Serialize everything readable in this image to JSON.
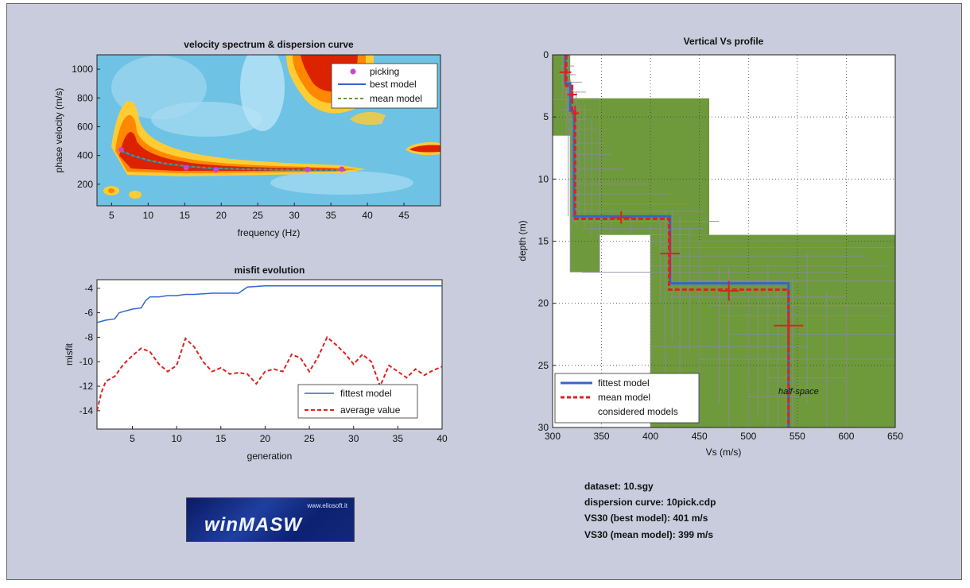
{
  "chart_data": [
    {
      "type": "heatmap",
      "title": "velocity spectrum & dispersion curve",
      "xlabel": "frequency (Hz)",
      "ylabel": "phase velocity (m/s)",
      "xlim": [
        3,
        50
      ],
      "ylim": [
        50,
        1100
      ],
      "xticks": [
        5,
        10,
        15,
        20,
        25,
        30,
        35,
        40,
        45
      ],
      "yticks": [
        200,
        400,
        600,
        800,
        1000
      ],
      "legend_position": "top-right",
      "legend": [
        "picking",
        "best model",
        "mean model"
      ],
      "series": [
        {
          "name": "picking",
          "kind": "points",
          "color": "#cc44cc",
          "x": [
            6.3,
            15.2,
            19.3,
            31.8,
            36.5
          ],
          "y": [
            440,
            315,
            300,
            302,
            305
          ]
        },
        {
          "name": "best model",
          "kind": "line",
          "color": "#3366cc",
          "x": [
            6.3,
            8,
            10,
            12,
            15,
            18,
            22,
            26,
            30,
            34,
            37
          ],
          "y": [
            430,
            395,
            365,
            345,
            325,
            312,
            305,
            302,
            300,
            298,
            297
          ]
        },
        {
          "name": "mean model",
          "kind": "dashed",
          "color": "#6a9a3a",
          "x": [
            6.3,
            8,
            10,
            12,
            15,
            18,
            22,
            26,
            30,
            34,
            37
          ],
          "y": [
            432,
            398,
            368,
            347,
            327,
            314,
            306,
            303,
            301,
            299,
            298
          ]
        }
      ]
    },
    {
      "type": "line",
      "title": "misfit evolution",
      "xlabel": "generation",
      "ylabel": "misfit",
      "xlim": [
        1,
        40
      ],
      "ylim": [
        -15.5,
        -3.3
      ],
      "xticks": [
        5,
        10,
        15,
        20,
        25,
        30,
        35,
        40
      ],
      "yticks": [
        -4,
        -6,
        -8,
        -10,
        -12,
        -14
      ],
      "legend_position": "bottom-right",
      "series": [
        {
          "name": "fittest model",
          "color": "#3366cc",
          "style": "solid",
          "x": [
            1,
            2,
            3,
            3.5,
            4,
            5,
            6,
            6.5,
            7,
            8,
            9,
            10,
            11,
            12,
            14,
            17,
            18,
            20,
            25,
            30,
            35,
            40
          ],
          "y": [
            -6.8,
            -6.6,
            -6.5,
            -6.0,
            -5.9,
            -5.7,
            -5.6,
            -5.0,
            -4.7,
            -4.7,
            -4.6,
            -4.6,
            -4.5,
            -4.5,
            -4.4,
            -4.4,
            -3.9,
            -3.8,
            -3.8,
            -3.8,
            -3.8,
            -3.8
          ]
        },
        {
          "name": "average value",
          "color": "#dd2222",
          "style": "dashed",
          "x": [
            1,
            1.5,
            2,
            3,
            4,
            5,
            6,
            7,
            8,
            9,
            10,
            11,
            12,
            13,
            14,
            15,
            16,
            17,
            18,
            19,
            20,
            21,
            22,
            23,
            24,
            25,
            26,
            27,
            28,
            29,
            30,
            31,
            32,
            33,
            34,
            35,
            36,
            37,
            38,
            39,
            40
          ],
          "y": [
            -14.0,
            -12.5,
            -11.6,
            -11.2,
            -10.2,
            -9.5,
            -8.9,
            -9.2,
            -10.2,
            -10.8,
            -10.3,
            -8.1,
            -8.8,
            -10.0,
            -10.8,
            -10.5,
            -11.0,
            -10.9,
            -11.0,
            -11.8,
            -10.8,
            -10.6,
            -10.8,
            -9.4,
            -9.7,
            -10.8,
            -9.6,
            -8.0,
            -8.6,
            -9.3,
            -10.2,
            -9.4,
            -10.0,
            -12.0,
            -10.3,
            -10.8,
            -11.3,
            -10.6,
            -11.1,
            -10.7,
            -10.4
          ]
        }
      ]
    },
    {
      "type": "line",
      "title": "Vertical Vs profile",
      "xlabel": "Vs (m/s)",
      "ylabel": "depth (m)",
      "xlim": [
        300,
        650
      ],
      "ylim": [
        0,
        30
      ],
      "xticks": [
        300,
        350,
        400,
        450,
        500,
        550,
        600,
        650
      ],
      "yticks": [
        0,
        5,
        10,
        15,
        20,
        25,
        30
      ],
      "grid": true,
      "legend_position": "bottom-left",
      "annotation": "half-space",
      "considered_models_color": "#6e9a3c",
      "considered_models_region": [
        {
          "vs": [
            300,
            318
          ],
          "depth": [
            0,
            6.5
          ]
        },
        {
          "vs": [
            300,
            348
          ],
          "depth": [
            3.5,
            6.5
          ]
        },
        {
          "vs": [
            318,
            348
          ],
          "depth": [
            3.5,
            17.5
          ]
        },
        {
          "vs": [
            348,
            460
          ],
          "depth": [
            3.5,
            14.5
          ]
        },
        {
          "vs": [
            400,
            650
          ],
          "depth": [
            14.5,
            30
          ]
        },
        {
          "vs": [
            440,
            650
          ],
          "depth": [
            14.5,
            30
          ]
        }
      ],
      "series": [
        {
          "name": "fittest model",
          "color": "#3366cc",
          "style": "solid",
          "vs": [
            313,
            313,
            318,
            318,
            322,
            322,
            420,
            420,
            541,
            541
          ],
          "depth": [
            0,
            2.3,
            2.3,
            4.5,
            4.5,
            13.0,
            13.0,
            18.4,
            18.4,
            30
          ]
        },
        {
          "name": "mean model",
          "color": "#dd2222",
          "style": "dashed",
          "vs": [
            314,
            314,
            320,
            320,
            323,
            323,
            419,
            419,
            541,
            541
          ],
          "depth": [
            0,
            2.5,
            2.5,
            4.6,
            4.6,
            13.2,
            13.2,
            18.9,
            18.9,
            30
          ]
        },
        {
          "name": "considered models",
          "color": "#6e9a3c",
          "style": "patch",
          "vs": [],
          "depth": []
        }
      ],
      "error_crosses": [
        {
          "vs": 313,
          "depth": 1.4,
          "dvs": 6,
          "ddepth": 0.8
        },
        {
          "vs": 320,
          "depth": 3.2,
          "dvs": 5,
          "ddepth": 0.6
        },
        {
          "vs": 323,
          "depth": 4.7,
          "dvs": 4,
          "ddepth": 0.6
        },
        {
          "vs": 370,
          "depth": 13.1,
          "dvs": 10,
          "ddepth": 0.5
        },
        {
          "vs": 420,
          "depth": 16.0,
          "dvs": 10,
          "ddepth": 1.8
        },
        {
          "vs": 480,
          "depth": 19.0,
          "dvs": 10,
          "ddepth": 0.8
        },
        {
          "vs": 541,
          "depth": 21.8,
          "dvs": 15,
          "ddepth": 1.2
        }
      ]
    }
  ],
  "info": {
    "dataset": "dataset: 10.sgy",
    "curve": "dispersion curve: 10pick.cdp",
    "vs30_best": "VS30 (best model): 401 m/s",
    "vs30_mean": "VS30 (mean model): 399 m/s"
  },
  "logo": {
    "url": "www.eliosoft.it",
    "name": "winMASW"
  }
}
